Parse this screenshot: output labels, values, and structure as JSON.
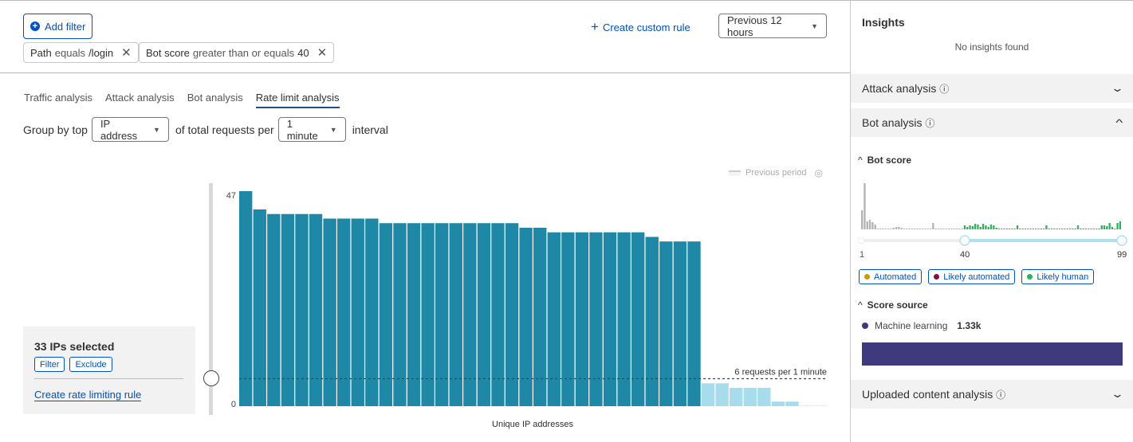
{
  "toolbar": {
    "add_filter": "Add filter",
    "create_custom_rule": "Create custom rule",
    "time_range": "Previous 12 hours"
  },
  "filters": [
    {
      "field": "Path",
      "op": "equals",
      "value": "/login"
    },
    {
      "field": "Bot score",
      "op": "greater than or equals",
      "value": "40"
    }
  ],
  "tabs": [
    {
      "label": "Traffic analysis"
    },
    {
      "label": "Attack analysis"
    },
    {
      "label": "Bot analysis"
    },
    {
      "label": "Rate limit analysis",
      "active": true
    }
  ],
  "group_by": {
    "prefix": "Group by top",
    "field": "IP address",
    "middle": "of total requests per",
    "interval": "1 minute",
    "suffix": "interval"
  },
  "legend": {
    "previous_period": "Previous period"
  },
  "selection": {
    "title": "33 IPs selected",
    "filter": "Filter",
    "exclude": "Exclude",
    "create_rule": "Create rate limiting rule"
  },
  "chart_data": {
    "type": "bar",
    "xlabel": "Unique IP addresses",
    "ylabel": "",
    "y_ticks": [
      "0",
      "47"
    ],
    "ylim": [
      0,
      47
    ],
    "values": [
      47,
      43,
      42,
      42,
      42,
      42,
      41,
      41,
      41,
      41,
      40,
      40,
      40,
      40,
      40,
      40,
      40,
      40,
      40,
      40,
      39,
      39,
      38,
      38,
      38,
      38,
      38,
      38,
      38,
      37,
      36,
      36,
      36,
      5,
      5,
      4,
      4,
      4,
      1,
      1,
      0,
      0
    ],
    "selected_count": 33,
    "threshold": {
      "value": 6,
      "label": "6 requests per 1 minute"
    },
    "colors": {
      "selected": "#1f88a6",
      "unselected": "#a6dcec"
    }
  },
  "insights": {
    "title": "Insights",
    "empty": "No insights found"
  },
  "panels": {
    "attack": "Attack analysis",
    "bot": "Bot analysis",
    "uploaded": "Uploaded content analysis"
  },
  "bot_score": {
    "title": "Bot score",
    "range_min": "1",
    "range_selected": "40",
    "range_max": "99",
    "histogram": [
      24,
      58,
      10,
      12,
      9,
      6,
      1,
      1,
      1,
      1,
      1,
      1,
      2,
      3,
      3,
      2,
      1,
      1,
      1,
      1,
      1,
      1,
      1,
      1,
      1,
      1,
      1,
      8,
      1,
      1,
      1,
      1,
      1,
      1,
      1,
      1,
      1,
      1,
      1,
      5,
      3,
      5,
      4,
      7,
      6,
      3,
      7,
      5,
      3,
      6,
      5,
      2,
      1,
      1,
      1,
      1,
      1,
      1,
      1,
      5,
      1,
      1,
      1,
      1,
      1,
      1,
      1,
      1,
      1,
      1,
      5,
      1,
      1,
      1,
      1,
      1,
      1,
      1,
      1,
      1,
      1,
      1,
      5,
      1,
      1,
      1,
      1,
      1,
      1,
      1,
      1,
      5,
      5,
      4,
      8,
      3,
      1,
      8,
      10
    ],
    "colors": {
      "below": "#b3b3b3",
      "above": "#2db35d"
    },
    "legend": [
      {
        "label": "Automated",
        "color": "#c99a12"
      },
      {
        "label": "Likely automated",
        "color": "#8c0e35"
      },
      {
        "label": "Likely human",
        "color": "#2db35d"
      }
    ]
  },
  "score_source": {
    "title": "Score source",
    "items": [
      {
        "label": "Machine learning",
        "value": "1.33k",
        "color": "#3f3a7d"
      }
    ]
  }
}
